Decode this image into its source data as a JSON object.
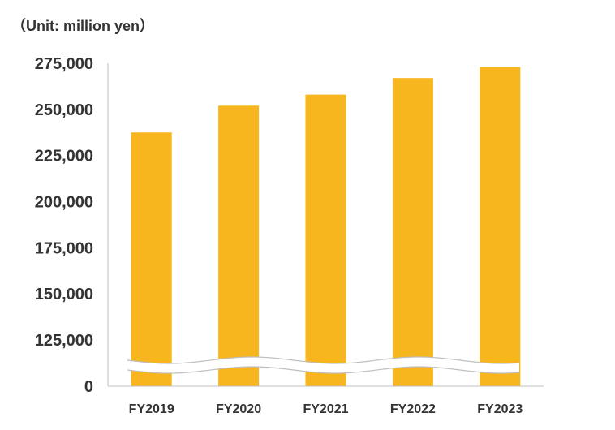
{
  "unit_label": "（Unit: million yen）",
  "chart_data": {
    "type": "bar",
    "categories": [
      "FY2019",
      "FY2020",
      "FY2021",
      "FY2022",
      "FY2023"
    ],
    "values": [
      237500,
      252000,
      258000,
      267000,
      273000
    ],
    "yticks": [
      "0",
      "125,000",
      "150,000",
      "175,000",
      "200,000",
      "225,000",
      "250,000",
      "275,000"
    ],
    "ylim": [
      0,
      275000
    ],
    "axis_break": true,
    "grid": false,
    "bar_color": "#F7B51E",
    "axis_color": "#BFBFBF"
  }
}
